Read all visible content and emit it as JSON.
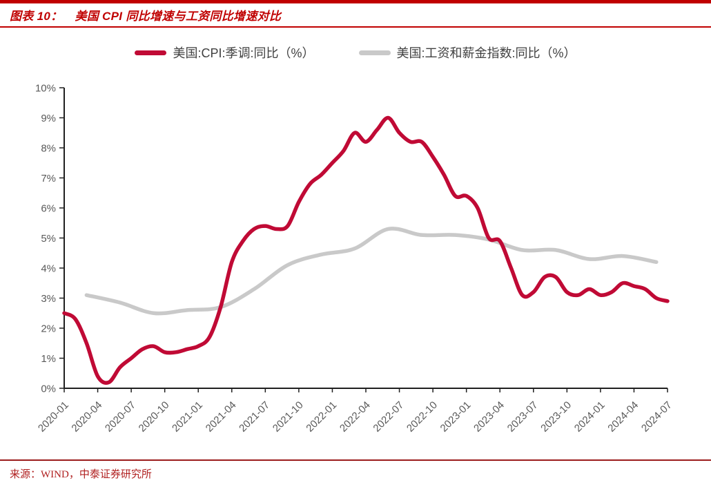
{
  "header": {
    "figure_label": "图表 10：",
    "title": "美国 CPI 同比增速与工资同比增速对比"
  },
  "footer": {
    "source": "来源：WIND，中泰证券研究所"
  },
  "colors": {
    "accent_red": "#C00000",
    "rule_dark_red": "#9B1B1B",
    "cpi_line": "#C00A35",
    "wage_line": "#C9C9C9",
    "axis": "#1F1F1F",
    "tick_label": "#595959",
    "legend_text": "#404040",
    "source_text": "#B02020"
  },
  "chart_data": {
    "type": "line",
    "title": "美国CPI同比增速与工资同比增速对比",
    "xlabel": "",
    "ylabel": "",
    "ylim": [
      0,
      10
    ],
    "grid": false,
    "legend_position": "top-center",
    "y_tick_labels": [
      "0%",
      "1%",
      "2%",
      "3%",
      "4%",
      "5%",
      "6%",
      "7%",
      "8%",
      "9%",
      "10%"
    ],
    "x_tick_labels": [
      "2020-01",
      "2020-04",
      "2020-07",
      "2020-10",
      "2021-01",
      "2021-04",
      "2021-07",
      "2021-10",
      "2022-01",
      "2022-04",
      "2022-07",
      "2022-10",
      "2023-01",
      "2023-04",
      "2023-07",
      "2023-10",
      "2024-01",
      "2024-04",
      "2024-07"
    ],
    "series": [
      {
        "name": "美国:CPI:季调:同比（%）",
        "key": "cpi-line",
        "color": "#C00A35",
        "z": 2,
        "x": [
          "2020-01",
          "2020-02",
          "2020-03",
          "2020-04",
          "2020-05",
          "2020-06",
          "2020-07",
          "2020-08",
          "2020-09",
          "2020-10",
          "2020-11",
          "2020-12",
          "2021-01",
          "2021-02",
          "2021-03",
          "2021-04",
          "2021-05",
          "2021-06",
          "2021-07",
          "2021-08",
          "2021-09",
          "2021-10",
          "2021-11",
          "2021-12",
          "2022-01",
          "2022-02",
          "2022-03",
          "2022-04",
          "2022-05",
          "2022-06",
          "2022-07",
          "2022-08",
          "2022-09",
          "2022-10",
          "2022-11",
          "2022-12",
          "2023-01",
          "2023-02",
          "2023-03",
          "2023-04",
          "2023-05",
          "2023-06",
          "2023-07",
          "2023-08",
          "2023-09",
          "2023-10",
          "2023-11",
          "2023-12",
          "2024-01",
          "2024-02",
          "2024-03",
          "2024-04",
          "2024-05",
          "2024-06",
          "2024-07"
        ],
        "values": [
          2.5,
          2.3,
          1.5,
          0.4,
          0.2,
          0.7,
          1.0,
          1.3,
          1.4,
          1.2,
          1.2,
          1.3,
          1.4,
          1.7,
          2.7,
          4.2,
          4.9,
          5.3,
          5.4,
          5.3,
          5.4,
          6.2,
          6.8,
          7.1,
          7.5,
          7.9,
          8.5,
          8.2,
          8.6,
          9.0,
          8.5,
          8.2,
          8.2,
          7.7,
          7.1,
          6.4,
          6.4,
          6.0,
          5.0,
          4.9,
          4.0,
          3.1,
          3.2,
          3.7,
          3.7,
          3.2,
          3.1,
          3.3,
          3.1,
          3.2,
          3.5,
          3.4,
          3.3,
          3.0,
          2.9
        ]
      },
      {
        "name": "美国:工资和薪金指数:同比（%）",
        "key": "wage-line",
        "color": "#C9C9C9",
        "z": 1,
        "x": [
          "2020-03",
          "2020-06",
          "2020-09",
          "2020-12",
          "2021-03",
          "2021-06",
          "2021-09",
          "2021-12",
          "2022-03",
          "2022-06",
          "2022-09",
          "2022-12",
          "2023-03",
          "2023-06",
          "2023-09",
          "2023-12",
          "2024-03",
          "2024-06"
        ],
        "values": [
          3.1,
          2.85,
          2.5,
          2.6,
          2.7,
          3.3,
          4.1,
          4.45,
          4.65,
          5.3,
          5.1,
          5.1,
          4.95,
          4.6,
          4.6,
          4.3,
          4.4,
          4.2
        ]
      }
    ]
  }
}
